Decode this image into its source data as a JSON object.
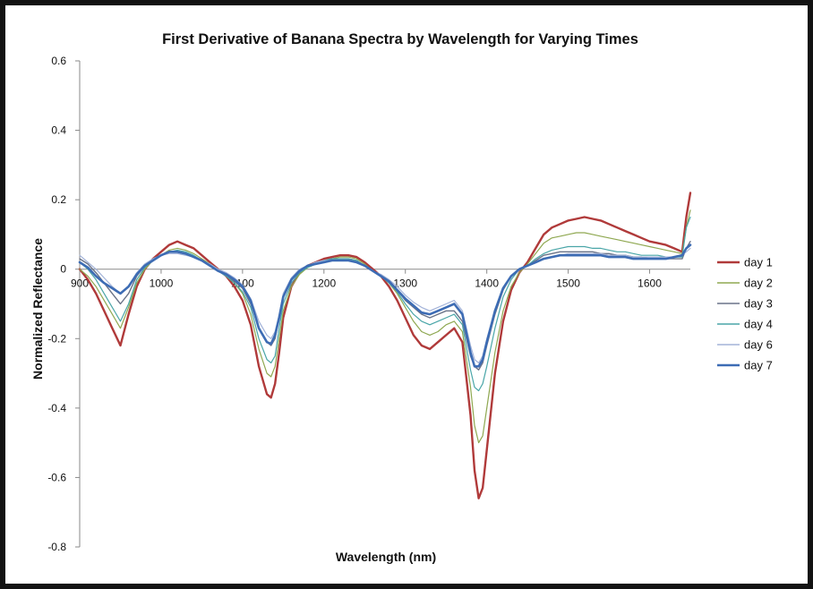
{
  "chart_data": {
    "type": "line",
    "title": "First Derivative of Banana Spectra by Wavelength for Varying Times",
    "xlabel": "Wavelength (nm)",
    "ylabel": "Normalized Reflectance",
    "xlim": [
      900,
      1650
    ],
    "ylim": [
      -0.8,
      0.6
    ],
    "x_ticks": [
      900,
      1000,
      1100,
      1200,
      1300,
      1400,
      1500,
      1600
    ],
    "y_ticks": [
      0.6,
      0.4,
      0.2,
      0,
      -0.2,
      -0.4,
      -0.6,
      -0.8
    ],
    "x_tick_labels": [
      "900",
      "1000",
      "1100",
      "1200",
      "1300",
      "1400",
      "1500",
      "1600"
    ],
    "y_tick_labels": [
      "0.6",
      "0.4",
      "0.2",
      "0",
      "-0.2",
      "-0.4",
      "-0.6",
      "-0.8"
    ],
    "legend_position": "right",
    "grid": false,
    "x": [
      900,
      910,
      920,
      930,
      940,
      950,
      960,
      970,
      980,
      990,
      1000,
      1010,
      1020,
      1030,
      1040,
      1050,
      1060,
      1070,
      1080,
      1090,
      1100,
      1110,
      1120,
      1130,
      1135,
      1140,
      1145,
      1150,
      1160,
      1170,
      1180,
      1190,
      1200,
      1210,
      1220,
      1230,
      1240,
      1250,
      1260,
      1270,
      1280,
      1290,
      1300,
      1310,
      1320,
      1330,
      1340,
      1350,
      1360,
      1370,
      1380,
      1385,
      1390,
      1395,
      1400,
      1410,
      1420,
      1430,
      1440,
      1450,
      1460,
      1470,
      1480,
      1490,
      1500,
      1510,
      1520,
      1530,
      1540,
      1550,
      1560,
      1570,
      1580,
      1590,
      1600,
      1610,
      1620,
      1630,
      1640,
      1645,
      1650
    ],
    "series": [
      {
        "name": "day 1",
        "color": "#b03a3a",
        "width": 2.4,
        "values": [
          0.0,
          -0.03,
          -0.07,
          -0.12,
          -0.17,
          -0.22,
          -0.13,
          -0.05,
          0.0,
          0.03,
          0.05,
          0.07,
          0.08,
          0.07,
          0.06,
          0.04,
          0.02,
          0.0,
          -0.02,
          -0.05,
          -0.09,
          -0.16,
          -0.28,
          -0.36,
          -0.37,
          -0.33,
          -0.24,
          -0.14,
          -0.05,
          -0.01,
          0.01,
          0.02,
          0.03,
          0.035,
          0.04,
          0.04,
          0.035,
          0.02,
          0.0,
          -0.02,
          -0.05,
          -0.09,
          -0.14,
          -0.19,
          -0.22,
          -0.23,
          -0.21,
          -0.19,
          -0.17,
          -0.21,
          -0.42,
          -0.58,
          -0.66,
          -0.63,
          -0.52,
          -0.3,
          -0.15,
          -0.06,
          -0.01,
          0.02,
          0.06,
          0.1,
          0.12,
          0.13,
          0.14,
          0.145,
          0.15,
          0.145,
          0.14,
          0.13,
          0.12,
          0.11,
          0.1,
          0.09,
          0.08,
          0.075,
          0.07,
          0.06,
          0.05,
          0.15,
          0.22
        ]
      },
      {
        "name": "day 2",
        "color": "#8fa851",
        "width": 1.2,
        "values": [
          0.0,
          -0.02,
          -0.05,
          -0.09,
          -0.13,
          -0.17,
          -0.11,
          -0.04,
          0.0,
          0.025,
          0.04,
          0.055,
          0.06,
          0.055,
          0.045,
          0.03,
          0.015,
          0.0,
          -0.02,
          -0.04,
          -0.07,
          -0.13,
          -0.23,
          -0.3,
          -0.31,
          -0.28,
          -0.2,
          -0.12,
          -0.05,
          -0.015,
          0.005,
          0.015,
          0.025,
          0.03,
          0.035,
          0.035,
          0.03,
          0.015,
          -0.005,
          -0.02,
          -0.04,
          -0.07,
          -0.11,
          -0.15,
          -0.18,
          -0.19,
          -0.18,
          -0.16,
          -0.15,
          -0.18,
          -0.34,
          -0.45,
          -0.5,
          -0.48,
          -0.4,
          -0.24,
          -0.12,
          -0.05,
          -0.01,
          0.015,
          0.045,
          0.075,
          0.09,
          0.095,
          0.1,
          0.105,
          0.105,
          0.1,
          0.095,
          0.09,
          0.085,
          0.08,
          0.075,
          0.07,
          0.065,
          0.06,
          0.055,
          0.05,
          0.045,
          0.12,
          0.17
        ]
      },
      {
        "name": "day 3",
        "color": "#6a7388",
        "width": 1.4,
        "values": [
          0.03,
          0.015,
          -0.01,
          -0.04,
          -0.07,
          -0.1,
          -0.07,
          -0.02,
          0.01,
          0.03,
          0.04,
          0.05,
          0.05,
          0.045,
          0.035,
          0.025,
          0.01,
          -0.005,
          -0.02,
          -0.035,
          -0.055,
          -0.1,
          -0.17,
          -0.21,
          -0.22,
          -0.2,
          -0.14,
          -0.08,
          -0.03,
          -0.005,
          0.01,
          0.02,
          0.025,
          0.03,
          0.03,
          0.03,
          0.025,
          0.01,
          -0.005,
          -0.02,
          -0.035,
          -0.06,
          -0.09,
          -0.11,
          -0.13,
          -0.14,
          -0.13,
          -0.12,
          -0.12,
          -0.15,
          -0.25,
          -0.28,
          -0.29,
          -0.27,
          -0.22,
          -0.13,
          -0.06,
          -0.02,
          0.0,
          0.01,
          0.025,
          0.04,
          0.045,
          0.05,
          0.05,
          0.05,
          0.05,
          0.05,
          0.045,
          0.045,
          0.04,
          0.04,
          0.035,
          0.035,
          0.03,
          0.03,
          0.03,
          0.03,
          0.03,
          0.06,
          0.08
        ]
      },
      {
        "name": "day 4",
        "color": "#4aa6a8",
        "width": 1.2,
        "values": [
          0.02,
          0.0,
          -0.03,
          -0.07,
          -0.11,
          -0.15,
          -0.1,
          -0.03,
          0.005,
          0.025,
          0.04,
          0.05,
          0.055,
          0.05,
          0.04,
          0.025,
          0.01,
          -0.005,
          -0.02,
          -0.04,
          -0.065,
          -0.11,
          -0.2,
          -0.26,
          -0.27,
          -0.25,
          -0.17,
          -0.1,
          -0.04,
          -0.01,
          0.005,
          0.015,
          0.025,
          0.03,
          0.03,
          0.03,
          0.025,
          0.01,
          -0.005,
          -0.02,
          -0.04,
          -0.065,
          -0.1,
          -0.13,
          -0.15,
          -0.16,
          -0.15,
          -0.14,
          -0.13,
          -0.16,
          -0.29,
          -0.34,
          -0.35,
          -0.33,
          -0.28,
          -0.17,
          -0.08,
          -0.03,
          0.0,
          0.01,
          0.03,
          0.045,
          0.055,
          0.06,
          0.065,
          0.065,
          0.065,
          0.06,
          0.06,
          0.055,
          0.05,
          0.05,
          0.045,
          0.04,
          0.04,
          0.04,
          0.035,
          0.035,
          0.035,
          0.12,
          0.15
        ]
      },
      {
        "name": "day 6",
        "color": "#a3b3d9",
        "width": 1.2,
        "values": [
          0.04,
          0.02,
          0.0,
          -0.025,
          -0.05,
          -0.07,
          -0.05,
          -0.01,
          0.015,
          0.03,
          0.04,
          0.045,
          0.045,
          0.04,
          0.035,
          0.025,
          0.015,
          0.0,
          -0.01,
          -0.025,
          -0.045,
          -0.085,
          -0.15,
          -0.19,
          -0.2,
          -0.18,
          -0.13,
          -0.07,
          -0.025,
          0.0,
          0.01,
          0.02,
          0.025,
          0.025,
          0.025,
          0.025,
          0.02,
          0.01,
          -0.005,
          -0.015,
          -0.03,
          -0.05,
          -0.075,
          -0.095,
          -0.11,
          -0.12,
          -0.11,
          -0.1,
          -0.09,
          -0.12,
          -0.22,
          -0.26,
          -0.27,
          -0.25,
          -0.2,
          -0.12,
          -0.055,
          -0.02,
          0.0,
          0.01,
          0.02,
          0.03,
          0.035,
          0.04,
          0.045,
          0.045,
          0.045,
          0.045,
          0.045,
          0.04,
          0.04,
          0.04,
          0.035,
          0.035,
          0.035,
          0.035,
          0.035,
          0.035,
          0.04,
          0.05,
          0.06
        ]
      },
      {
        "name": "day 7",
        "color": "#3d6cb4",
        "width": 2.6,
        "values": [
          0.02,
          0.005,
          -0.02,
          -0.04,
          -0.055,
          -0.07,
          -0.05,
          -0.015,
          0.01,
          0.025,
          0.04,
          0.05,
          0.05,
          0.045,
          0.035,
          0.025,
          0.01,
          -0.005,
          -0.015,
          -0.03,
          -0.05,
          -0.09,
          -0.17,
          -0.21,
          -0.215,
          -0.19,
          -0.14,
          -0.08,
          -0.03,
          -0.005,
          0.01,
          0.015,
          0.02,
          0.025,
          0.025,
          0.025,
          0.02,
          0.01,
          -0.005,
          -0.02,
          -0.035,
          -0.06,
          -0.085,
          -0.105,
          -0.125,
          -0.13,
          -0.12,
          -0.11,
          -0.1,
          -0.13,
          -0.24,
          -0.28,
          -0.28,
          -0.26,
          -0.21,
          -0.12,
          -0.055,
          -0.02,
          0.0,
          0.01,
          0.02,
          0.03,
          0.035,
          0.04,
          0.04,
          0.04,
          0.04,
          0.04,
          0.04,
          0.035,
          0.035,
          0.035,
          0.03,
          0.03,
          0.03,
          0.03,
          0.03,
          0.035,
          0.04,
          0.06,
          0.07
        ]
      }
    ]
  }
}
